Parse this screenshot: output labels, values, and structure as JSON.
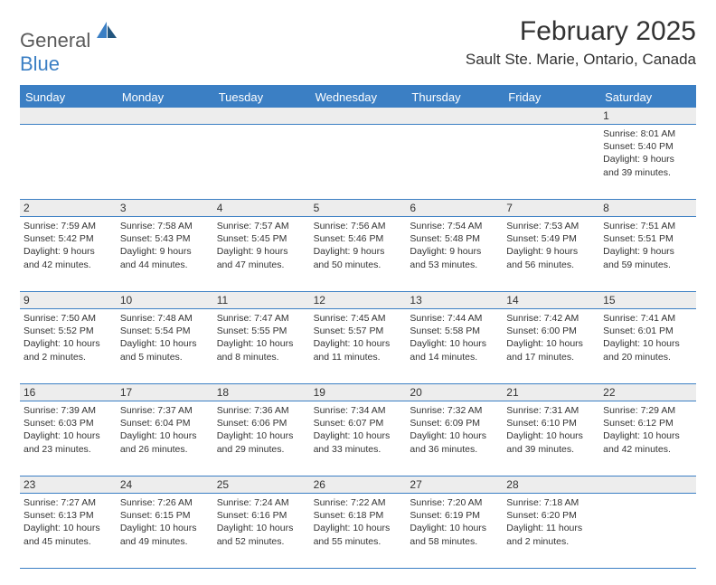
{
  "brand": {
    "part1": "General",
    "part2": "Blue"
  },
  "title": "February 2025",
  "location": "Sault Ste. Marie, Ontario, Canada",
  "colors": {
    "accent": "#3b7fc4",
    "header_text": "#ffffff",
    "daynum_bg": "#ededed",
    "text": "#333333",
    "logo_gray": "#5a5a5a"
  },
  "weekdays": [
    "Sunday",
    "Monday",
    "Tuesday",
    "Wednesday",
    "Thursday",
    "Friday",
    "Saturday"
  ],
  "weeks": [
    [
      null,
      null,
      null,
      null,
      null,
      null,
      {
        "n": "1",
        "sunrise": "Sunrise: 8:01 AM",
        "sunset": "Sunset: 5:40 PM",
        "daylight": "Daylight: 9 hours and 39 minutes."
      }
    ],
    [
      {
        "n": "2",
        "sunrise": "Sunrise: 7:59 AM",
        "sunset": "Sunset: 5:42 PM",
        "daylight": "Daylight: 9 hours and 42 minutes."
      },
      {
        "n": "3",
        "sunrise": "Sunrise: 7:58 AM",
        "sunset": "Sunset: 5:43 PM",
        "daylight": "Daylight: 9 hours and 44 minutes."
      },
      {
        "n": "4",
        "sunrise": "Sunrise: 7:57 AM",
        "sunset": "Sunset: 5:45 PM",
        "daylight": "Daylight: 9 hours and 47 minutes."
      },
      {
        "n": "5",
        "sunrise": "Sunrise: 7:56 AM",
        "sunset": "Sunset: 5:46 PM",
        "daylight": "Daylight: 9 hours and 50 minutes."
      },
      {
        "n": "6",
        "sunrise": "Sunrise: 7:54 AM",
        "sunset": "Sunset: 5:48 PM",
        "daylight": "Daylight: 9 hours and 53 minutes."
      },
      {
        "n": "7",
        "sunrise": "Sunrise: 7:53 AM",
        "sunset": "Sunset: 5:49 PM",
        "daylight": "Daylight: 9 hours and 56 minutes."
      },
      {
        "n": "8",
        "sunrise": "Sunrise: 7:51 AM",
        "sunset": "Sunset: 5:51 PM",
        "daylight": "Daylight: 9 hours and 59 minutes."
      }
    ],
    [
      {
        "n": "9",
        "sunrise": "Sunrise: 7:50 AM",
        "sunset": "Sunset: 5:52 PM",
        "daylight": "Daylight: 10 hours and 2 minutes."
      },
      {
        "n": "10",
        "sunrise": "Sunrise: 7:48 AM",
        "sunset": "Sunset: 5:54 PM",
        "daylight": "Daylight: 10 hours and 5 minutes."
      },
      {
        "n": "11",
        "sunrise": "Sunrise: 7:47 AM",
        "sunset": "Sunset: 5:55 PM",
        "daylight": "Daylight: 10 hours and 8 minutes."
      },
      {
        "n": "12",
        "sunrise": "Sunrise: 7:45 AM",
        "sunset": "Sunset: 5:57 PM",
        "daylight": "Daylight: 10 hours and 11 minutes."
      },
      {
        "n": "13",
        "sunrise": "Sunrise: 7:44 AM",
        "sunset": "Sunset: 5:58 PM",
        "daylight": "Daylight: 10 hours and 14 minutes."
      },
      {
        "n": "14",
        "sunrise": "Sunrise: 7:42 AM",
        "sunset": "Sunset: 6:00 PM",
        "daylight": "Daylight: 10 hours and 17 minutes."
      },
      {
        "n": "15",
        "sunrise": "Sunrise: 7:41 AM",
        "sunset": "Sunset: 6:01 PM",
        "daylight": "Daylight: 10 hours and 20 minutes."
      }
    ],
    [
      {
        "n": "16",
        "sunrise": "Sunrise: 7:39 AM",
        "sunset": "Sunset: 6:03 PM",
        "daylight": "Daylight: 10 hours and 23 minutes."
      },
      {
        "n": "17",
        "sunrise": "Sunrise: 7:37 AM",
        "sunset": "Sunset: 6:04 PM",
        "daylight": "Daylight: 10 hours and 26 minutes."
      },
      {
        "n": "18",
        "sunrise": "Sunrise: 7:36 AM",
        "sunset": "Sunset: 6:06 PM",
        "daylight": "Daylight: 10 hours and 29 minutes."
      },
      {
        "n": "19",
        "sunrise": "Sunrise: 7:34 AM",
        "sunset": "Sunset: 6:07 PM",
        "daylight": "Daylight: 10 hours and 33 minutes."
      },
      {
        "n": "20",
        "sunrise": "Sunrise: 7:32 AM",
        "sunset": "Sunset: 6:09 PM",
        "daylight": "Daylight: 10 hours and 36 minutes."
      },
      {
        "n": "21",
        "sunrise": "Sunrise: 7:31 AM",
        "sunset": "Sunset: 6:10 PM",
        "daylight": "Daylight: 10 hours and 39 minutes."
      },
      {
        "n": "22",
        "sunrise": "Sunrise: 7:29 AM",
        "sunset": "Sunset: 6:12 PM",
        "daylight": "Daylight: 10 hours and 42 minutes."
      }
    ],
    [
      {
        "n": "23",
        "sunrise": "Sunrise: 7:27 AM",
        "sunset": "Sunset: 6:13 PM",
        "daylight": "Daylight: 10 hours and 45 minutes."
      },
      {
        "n": "24",
        "sunrise": "Sunrise: 7:26 AM",
        "sunset": "Sunset: 6:15 PM",
        "daylight": "Daylight: 10 hours and 49 minutes."
      },
      {
        "n": "25",
        "sunrise": "Sunrise: 7:24 AM",
        "sunset": "Sunset: 6:16 PM",
        "daylight": "Daylight: 10 hours and 52 minutes."
      },
      {
        "n": "26",
        "sunrise": "Sunrise: 7:22 AM",
        "sunset": "Sunset: 6:18 PM",
        "daylight": "Daylight: 10 hours and 55 minutes."
      },
      {
        "n": "27",
        "sunrise": "Sunrise: 7:20 AM",
        "sunset": "Sunset: 6:19 PM",
        "daylight": "Daylight: 10 hours and 58 minutes."
      },
      {
        "n": "28",
        "sunrise": "Sunrise: 7:18 AM",
        "sunset": "Sunset: 6:20 PM",
        "daylight": "Daylight: 11 hours and 2 minutes."
      },
      null
    ]
  ]
}
